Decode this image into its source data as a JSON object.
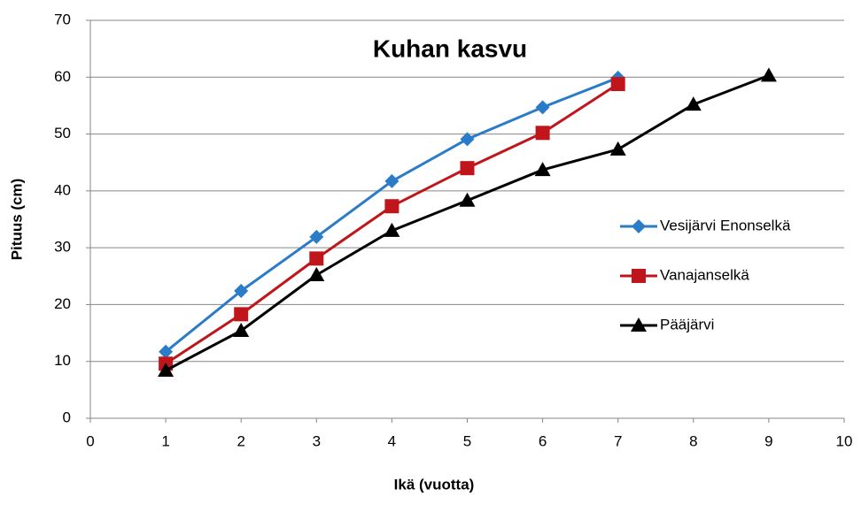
{
  "chart_data": {
    "type": "line",
    "title": "Kuhan kasvu",
    "x_label": "Ikä (vuotta)",
    "y_label": "Pituus (cm)",
    "xlim": [
      0,
      10
    ],
    "xticks": [
      0,
      1,
      2,
      3,
      4,
      5,
      6,
      7,
      8,
      9,
      10
    ],
    "ylim": [
      0,
      70
    ],
    "yticks": [
      0,
      10,
      20,
      30,
      40,
      50,
      60,
      70
    ],
    "grid": true,
    "legend": "right",
    "series": [
      {
        "name": "Vesijärvi Enonselkä",
        "color": "#2a7bc8",
        "marker": "diamond",
        "x": [
          1,
          2,
          3,
          4,
          5,
          6,
          7
        ],
        "values": [
          11.7,
          22.4,
          31.9,
          41.7,
          49.1,
          54.7,
          59.9
        ]
      },
      {
        "name": "Vanajanselkä",
        "color": "#c0161b",
        "marker": "square",
        "x": [
          1,
          2,
          3,
          4,
          5,
          6,
          7
        ],
        "values": [
          9.6,
          18.3,
          28.1,
          37.3,
          44.0,
          50.2,
          58.8
        ]
      },
      {
        "name": "Pääjärvi",
        "color": "#000000",
        "marker": "triangle",
        "x": [
          1,
          2,
          3,
          4,
          5,
          6,
          7,
          8,
          9
        ],
        "values": [
          8.4,
          15.4,
          25.2,
          33.0,
          38.3,
          43.7,
          47.3,
          55.2,
          60.3
        ]
      }
    ]
  }
}
